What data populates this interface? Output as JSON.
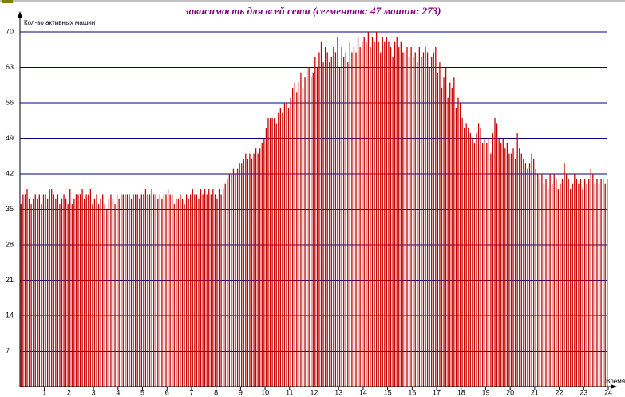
{
  "chart_data": {
    "type": "bar",
    "title": "зависимость для всей сети (сегментов: 47 машин: 273)",
    "ylabel": "Кол-во активных машин",
    "xlabel": "Время",
    "color": "#c80000",
    "grid_color": "#000080",
    "grid": true,
    "ylim": [
      0,
      70
    ],
    "yticks": [
      7,
      14,
      21,
      28,
      35,
      42,
      49,
      56,
      63,
      70
    ],
    "xlim": [
      0,
      24
    ],
    "xticks": [
      1,
      2,
      3,
      4,
      5,
      6,
      7,
      8,
      9,
      10,
      11,
      12,
      13,
      14,
      15,
      16,
      17,
      18,
      19,
      20,
      21,
      22,
      23,
      24
    ],
    "values": [
      36,
      38,
      38,
      39,
      37,
      36,
      37,
      38,
      37,
      38,
      36,
      38,
      38,
      37,
      39,
      39,
      38,
      37,
      38,
      36,
      37,
      38,
      37,
      36,
      39,
      36,
      37,
      38,
      38,
      38,
      39,
      37,
      38,
      38,
      39,
      36,
      37,
      38,
      36,
      37,
      38,
      36,
      35,
      37,
      38,
      37,
      36,
      38,
      37,
      38,
      38,
      38,
      38,
      38,
      37,
      38,
      38,
      38,
      37,
      38,
      38,
      39,
      38,
      38,
      39,
      38,
      38,
      37,
      38,
      37,
      38,
      38,
      39,
      38,
      38,
      36,
      37,
      37,
      38,
      37,
      36,
      38,
      37,
      38,
      39,
      38,
      38,
      37,
      39,
      38,
      39,
      38,
      39,
      38,
      39,
      38,
      37,
      39,
      38,
      39,
      40,
      41,
      42,
      42,
      43,
      42,
      43,
      44,
      44,
      45,
      46,
      45,
      46,
      45,
      46,
      47,
      46,
      47,
      48,
      49,
      51,
      53,
      53,
      53,
      53,
      52,
      54,
      55,
      54,
      56,
      56,
      55,
      57,
      59,
      60,
      58,
      60,
      62,
      59,
      61,
      63,
      63,
      61,
      62,
      65,
      63,
      66,
      68,
      64,
      67,
      66,
      64,
      65,
      67,
      66,
      69,
      63,
      67,
      65,
      66,
      64,
      68,
      66,
      67,
      66,
      69,
      67,
      68,
      69,
      68,
      70,
      67,
      69,
      68,
      70,
      68,
      66,
      69,
      68,
      69,
      68,
      67,
      65,
      68,
      69,
      67,
      68,
      66,
      66,
      67,
      65,
      67,
      65,
      66,
      64,
      67,
      65,
      66,
      67,
      66,
      63,
      65,
      66,
      67,
      62,
      64,
      59,
      61,
      63,
      57,
      60,
      59,
      61,
      55,
      57,
      56,
      53,
      51,
      52,
      51,
      50,
      49,
      48,
      50,
      52,
      51,
      48,
      49,
      48,
      49,
      46,
      50,
      53,
      52,
      49,
      48,
      49,
      47,
      48,
      46,
      46,
      47,
      45,
      50,
      47,
      46,
      45,
      44,
      43,
      44,
      46,
      45,
      43,
      42,
      41,
      42,
      40,
      41,
      39,
      42,
      40,
      42,
      41,
      39,
      40,
      41,
      44,
      42,
      41,
      39,
      40,
      42,
      41,
      40,
      41,
      39,
      41,
      40,
      41,
      43,
      42,
      40,
      41,
      40,
      41,
      41,
      40,
      41
    ]
  }
}
